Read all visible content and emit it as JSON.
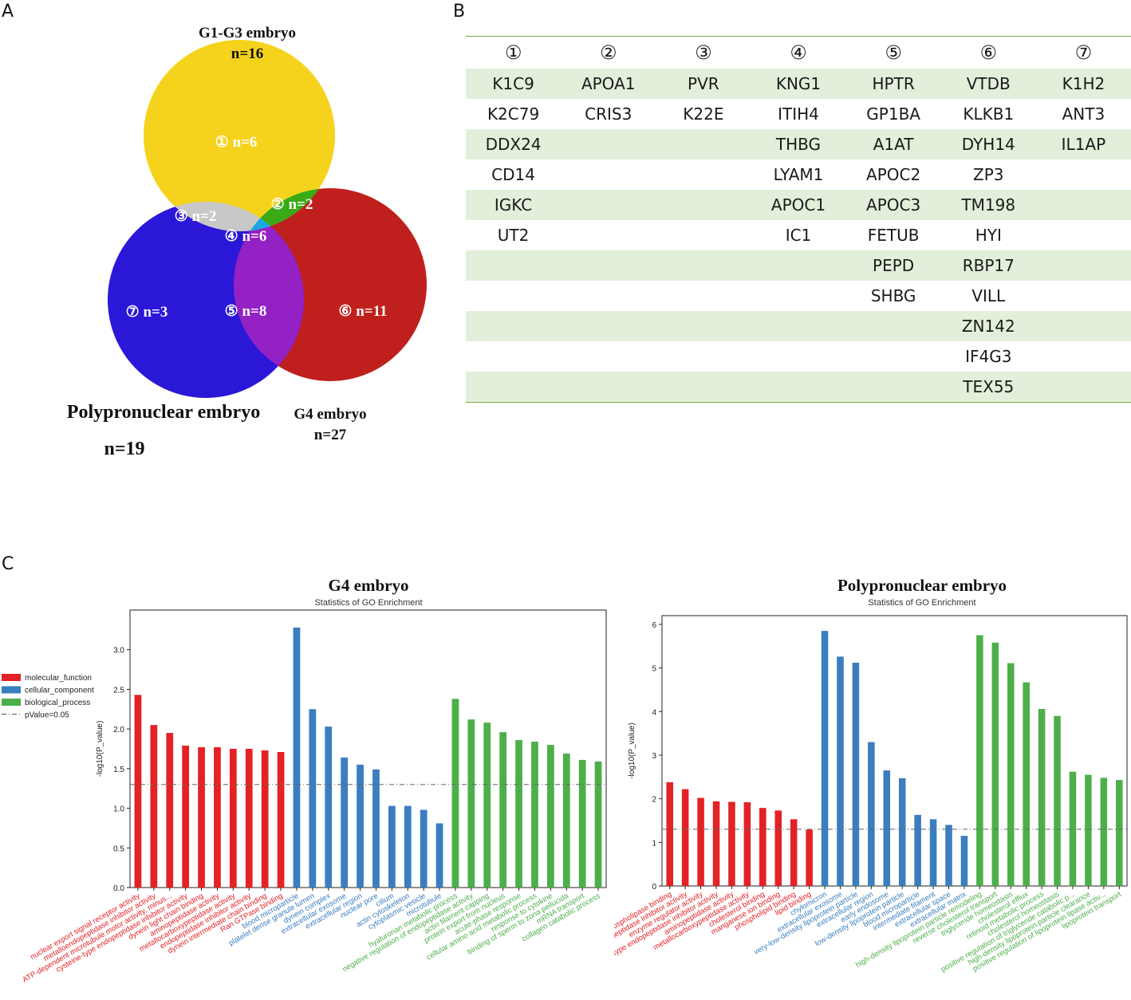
{
  "panels": {
    "a": "A",
    "b": "B",
    "c": "C"
  },
  "venn": {
    "sets": [
      {
        "name": "G1-G3 embryo",
        "n": "n=16",
        "color": "#f5d31c"
      },
      {
        "name": "G4 embryo",
        "n": "n=27",
        "color": "#c0201d"
      },
      {
        "name": "Polypronuclear embryo",
        "n": "n=19",
        "color": "#2b17d8"
      }
    ],
    "regions": [
      {
        "label": "① n=6",
        "color": "#f5d31c"
      },
      {
        "label": "② n=2",
        "color": "#3aaa16"
      },
      {
        "label": "③ n=2",
        "color": "#c8c8c8"
      },
      {
        "label": "④ n=6",
        "color": "#1aa8e0"
      },
      {
        "label": "⑤ n=8",
        "color": "#9421c4"
      },
      {
        "label": "⑥ n=11",
        "color": "#c0201d"
      },
      {
        "label": "⑦ n=3",
        "color": "#2b17d8"
      }
    ]
  },
  "table": {
    "headers": [
      "①",
      "②",
      "③",
      "④",
      "⑤",
      "⑥",
      "⑦"
    ],
    "rows": [
      [
        "K1C9",
        "APOA1",
        "PVR",
        "KNG1",
        "HPTR",
        "VTDB",
        "K1H2"
      ],
      [
        "K2C79",
        "CRIS3",
        "K22E",
        "ITIH4",
        "GP1BA",
        "KLKB1",
        "ANT3"
      ],
      [
        "DDX24",
        "",
        "",
        "THBG",
        "A1AT",
        "DYH14",
        "IL1AP"
      ],
      [
        "CD14",
        "",
        "",
        "LYAM1",
        "APOC2",
        "ZP3",
        ""
      ],
      [
        "IGKC",
        "",
        "",
        "APOC1",
        "APOC3",
        "TM198",
        ""
      ],
      [
        "UT2",
        "",
        "",
        "IC1",
        "FETUB",
        "HYI",
        ""
      ],
      [
        "",
        "",
        "",
        "",
        "PEPD",
        "RBP17",
        ""
      ],
      [
        "",
        "",
        "",
        "",
        "SHBG",
        "VILL",
        ""
      ],
      [
        "",
        "",
        "",
        "",
        "",
        "ZN142",
        ""
      ],
      [
        "",
        "",
        "",
        "",
        "",
        "IF4G3",
        ""
      ],
      [
        "",
        "",
        "",
        "",
        "",
        "TEX55",
        ""
      ]
    ]
  },
  "chart_data": [
    {
      "type": "bar",
      "title": "G4 embryo",
      "subtitle": "Statistics of GO Enrichment",
      "ylabel": "-log10(P_value)",
      "ylim": [
        0,
        3.5
      ],
      "yticks": [
        "0.0",
        "0.5",
        "1.0",
        "1.5",
        "2.0",
        "2.5",
        "3.0"
      ],
      "threshold": 1.3,
      "legend": [
        {
          "name": "molecular_function",
          "color": "#e32227"
        },
        {
          "name": "cellular_component",
          "color": "#3a7ebf"
        },
        {
          "name": "biological_process",
          "color": "#4daf4a"
        },
        {
          "name": "pValue=0.05",
          "color": "#555555"
        }
      ],
      "categories": [
        "nuclear export signal receptor activity",
        "metalloendopeptidase inhibitor activity",
        "ATP-dependent microtubule motor activity, minus...",
        "cysteine-type endopeptidase inhibitor activity",
        "dynein light chain binding",
        "aminopeptidase activity",
        "metallocarboxypeptidase activity",
        "endopeptidase inhibitor activity",
        "dynein intermediate chain binding",
        "Ran GTPase binding",
        "blood microparticle",
        "platelet dense granule lumen",
        "dynein complex",
        "extracellular exosome",
        "extracellular region",
        "nuclear pore",
        "cilium",
        "actin cytoskeleton",
        "cytoplasmic vesicle",
        "microtubule",
        "hyaluronan metabolic process",
        "negative regulation of endopeptidase activity",
        "actin filament capping",
        "protein export from nucleus",
        "acute-phase response",
        "cellular amino acid metabolic process",
        "response to cytokine",
        "binding of sperm to zona pellucida",
        "mRNA transport",
        "collagen catabolic process"
      ],
      "values": [
        2.43,
        2.05,
        1.95,
        1.79,
        1.77,
        1.77,
        1.75,
        1.75,
        1.73,
        1.71,
        3.28,
        2.25,
        2.03,
        1.64,
        1.55,
        1.49,
        1.03,
        1.03,
        0.98,
        0.81,
        2.38,
        2.12,
        2.08,
        1.96,
        1.86,
        1.84,
        1.8,
        1.69,
        1.61,
        1.59
      ],
      "groups": [
        "mf",
        "mf",
        "mf",
        "mf",
        "mf",
        "mf",
        "mf",
        "mf",
        "mf",
        "mf",
        "cc",
        "cc",
        "cc",
        "cc",
        "cc",
        "cc",
        "cc",
        "cc",
        "cc",
        "cc",
        "bp",
        "bp",
        "bp",
        "bp",
        "bp",
        "bp",
        "bp",
        "bp",
        "bp",
        "bp"
      ]
    },
    {
      "type": "bar",
      "title": "Polypronuclear embryo",
      "subtitle": "Statistics of GO Enrichment",
      "ylabel": "-log10(P_value)",
      "ylim": [
        0,
        6.2
      ],
      "yticks": [
        "0",
        "1",
        "2",
        "3",
        "4",
        "5",
        "6"
      ],
      "threshold": 1.3,
      "categories": [
        "phospholipase binding",
        "metalloendopeptidase inhibitor activity",
        "enzyme regulator activity",
        "cysteine-type endopeptidase inhibitor activity",
        "aminopeptidase activity",
        "metallocarboxypeptidase activity",
        "cholesterol binding",
        "manganese ion binding",
        "phospholipid binding",
        "lipid binding",
        "chylomicron",
        "extracellular exosome",
        "very-low-density lipoprotein particle",
        "extracellular region",
        "early endosome",
        "low-density lipoprotein particle",
        "blood microparticle",
        "intermediate filament",
        "extracellular space",
        "extracellular matrix",
        "high-density lipoprotein particle remodeling",
        "reverse cholesterol transport",
        "triglyceride homeostasis",
        "cholesterol efflux",
        "retinoid metabolic process",
        "cholesterol homeostasis",
        "positive regulation of triglyceride catabolic p...",
        "high-density lipoprotein particle clearance",
        "positive regulation of lipoprotein lipase activ...",
        "lipoprotein transport"
      ],
      "values": [
        2.38,
        2.22,
        2.02,
        1.94,
        1.93,
        1.92,
        1.79,
        1.73,
        1.53,
        1.29,
        5.85,
        5.26,
        5.12,
        3.3,
        2.65,
        2.47,
        1.63,
        1.53,
        1.4,
        1.15,
        5.75,
        5.58,
        5.11,
        4.67,
        4.06,
        3.9,
        2.62,
        2.55,
        2.48,
        2.43
      ],
      "groups": [
        "mf",
        "mf",
        "mf",
        "mf",
        "mf",
        "mf",
        "mf",
        "mf",
        "mf",
        "mf",
        "cc",
        "cc",
        "cc",
        "cc",
        "cc",
        "cc",
        "cc",
        "cc",
        "cc",
        "cc",
        "bp",
        "bp",
        "bp",
        "bp",
        "bp",
        "bp",
        "bp",
        "bp",
        "bp",
        "bp"
      ]
    }
  ]
}
